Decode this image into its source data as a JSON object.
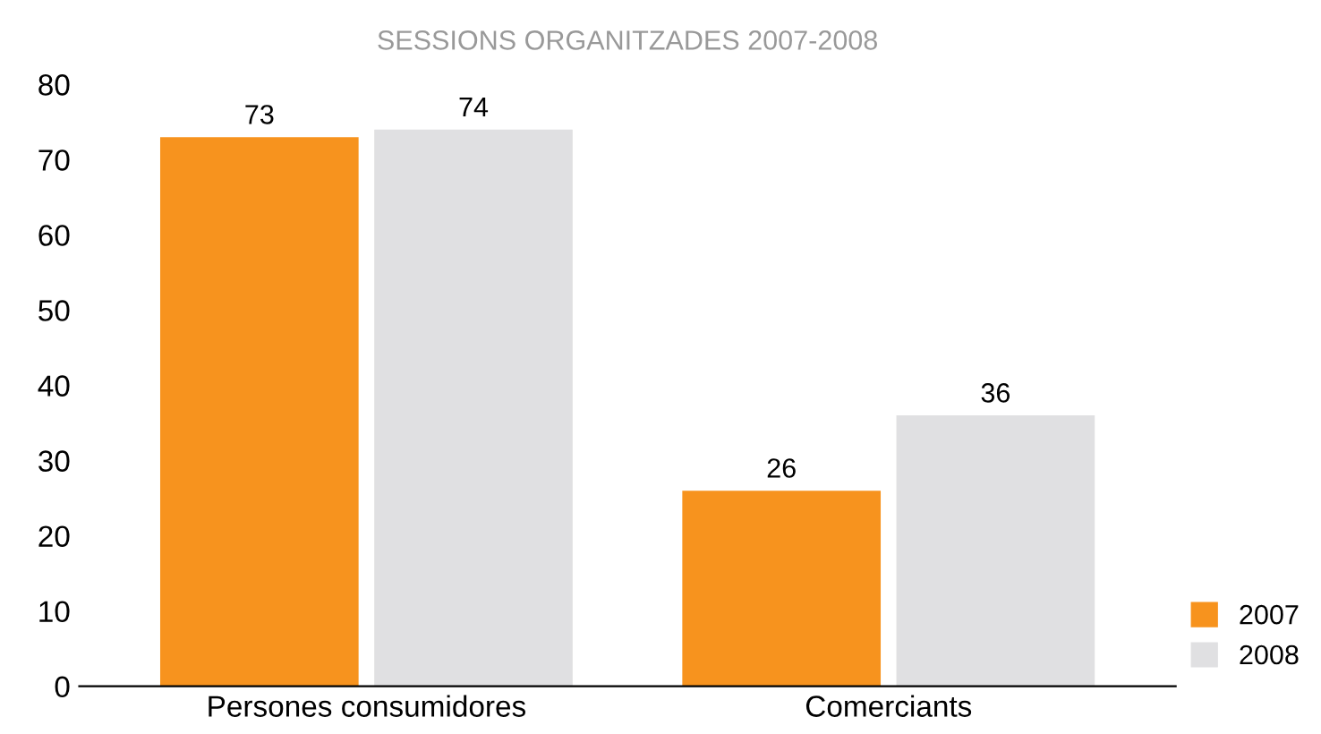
{
  "chart_data": {
    "type": "bar",
    "title": "SESSIONS ORGANITZADES 2007-2008",
    "categories": [
      "Persones consumidores",
      "Comerciants"
    ],
    "series": [
      {
        "name": "2007",
        "color": "#f7931e",
        "values": [
          73,
          26
        ]
      },
      {
        "name": "2008",
        "color": "#e0e0e2",
        "values": [
          74,
          36
        ]
      }
    ],
    "ylim": [
      0,
      80
    ],
    "yticks": [
      0,
      10,
      20,
      30,
      40,
      50,
      60,
      70,
      80
    ],
    "grid": false,
    "legend": "bottom right",
    "data_labels": true
  }
}
